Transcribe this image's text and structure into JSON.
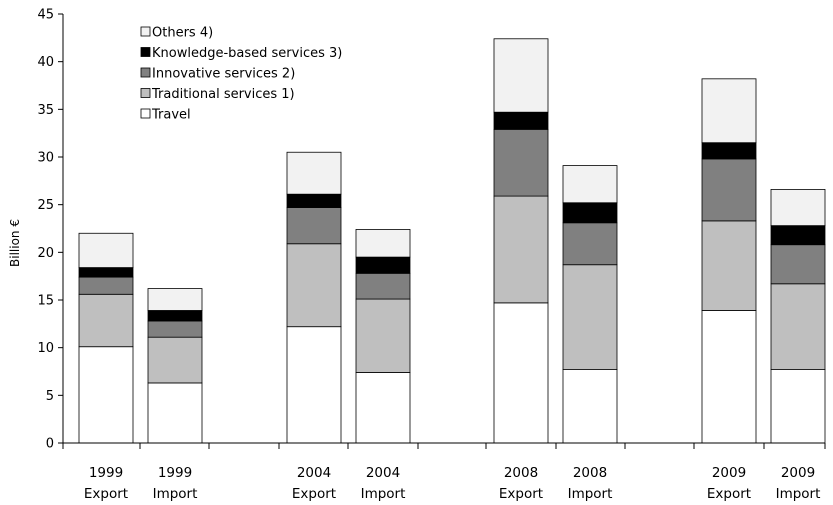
{
  "chart_data": {
    "type": "bar",
    "stacked": true,
    "title": "",
    "xlabel": "",
    "ylabel": "Billion €",
    "ylim": [
      0,
      45
    ],
    "yticks": [
      0,
      5,
      10,
      15,
      20,
      25,
      30,
      35,
      40,
      45
    ],
    "grid": false,
    "legend_position": "top-left",
    "categories": [
      [
        "1999",
        "Export"
      ],
      [
        "1999",
        "Import"
      ],
      [
        "2004",
        "Export"
      ],
      [
        "2004",
        "Import"
      ],
      [
        "2008",
        "Export"
      ],
      [
        "2008",
        "Import"
      ],
      [
        "2009",
        "Export"
      ],
      [
        "2009",
        "Import"
      ]
    ],
    "series": [
      {
        "name": "Travel",
        "color": "#ffffff",
        "values": [
          10.1,
          6.3,
          12.2,
          7.4,
          14.7,
          7.7,
          13.9,
          7.7
        ]
      },
      {
        "name": "Traditional services 1)",
        "color": "#bfbfbf",
        "values": [
          5.5,
          4.8,
          8.7,
          7.7,
          11.2,
          11.0,
          9.4,
          9.0
        ]
      },
      {
        "name": "Innovative services 2)",
        "color": "#808080",
        "values": [
          1.8,
          1.7,
          3.8,
          2.7,
          7.0,
          4.4,
          6.5,
          4.1
        ]
      },
      {
        "name": "Knowledge-based services 3)",
        "color": "#000000",
        "values": [
          1.0,
          1.1,
          1.4,
          1.7,
          1.8,
          2.1,
          1.7,
          2.0
        ]
      },
      {
        "name": "Others 4)",
        "color": "#f2f2f2",
        "values": [
          3.6,
          2.3,
          4.4,
          2.9,
          7.7,
          3.9,
          6.7,
          3.8
        ]
      }
    ],
    "legend_order": [
      "Others 4)",
      "Knowledge-based services 3)",
      "Innovative services 2)",
      "Traditional services 1)",
      "Travel"
    ]
  }
}
